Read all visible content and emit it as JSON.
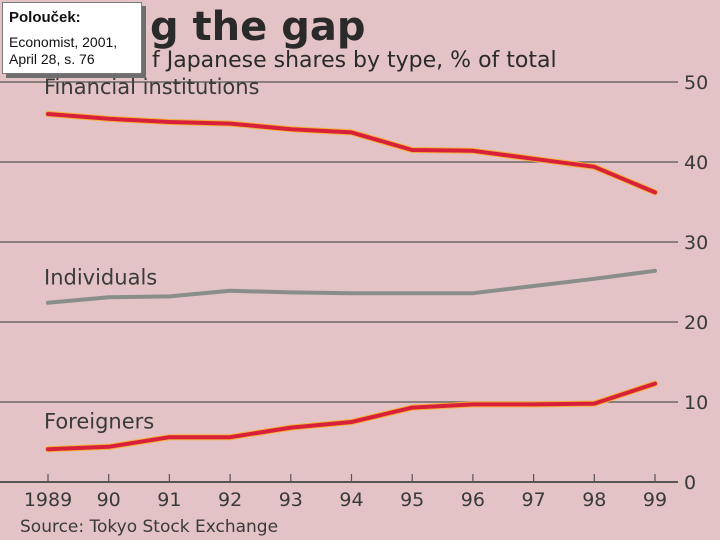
{
  "note": {
    "title": "Polouček:",
    "line1": "Economist, 2001,",
    "line2": "April 28, s. 76"
  },
  "chart_data": {
    "type": "line",
    "title": "g the gap",
    "subtitle": "f Japanese shares by type, % of total",
    "x": [
      "1989",
      "90",
      "91",
      "92",
      "93",
      "94",
      "95",
      "96",
      "97",
      "98",
      "99"
    ],
    "ylim": [
      0,
      50
    ],
    "yticks": [
      0,
      10,
      20,
      30,
      40,
      50
    ],
    "series": [
      {
        "name": "Financial institutions",
        "values": [
          46.0,
          45.4,
          45.0,
          44.8,
          44.1,
          43.7,
          41.5,
          41.4,
          40.4,
          39.4,
          36.2
        ],
        "color": "#d9203a"
      },
      {
        "name": "Individuals",
        "values": [
          22.4,
          23.1,
          23.2,
          23.9,
          23.7,
          23.6,
          23.6,
          23.6,
          24.5,
          25.4,
          26.4
        ],
        "color": "#8a8e8b"
      },
      {
        "name": "Foreigners",
        "values": [
          4.1,
          4.4,
          5.6,
          5.6,
          6.8,
          7.5,
          9.3,
          9.7,
          9.7,
          9.8,
          12.3
        ],
        "color": "#d9203a"
      }
    ],
    "source": "Source: Tokyo Stock Exchange",
    "grid": true
  }
}
